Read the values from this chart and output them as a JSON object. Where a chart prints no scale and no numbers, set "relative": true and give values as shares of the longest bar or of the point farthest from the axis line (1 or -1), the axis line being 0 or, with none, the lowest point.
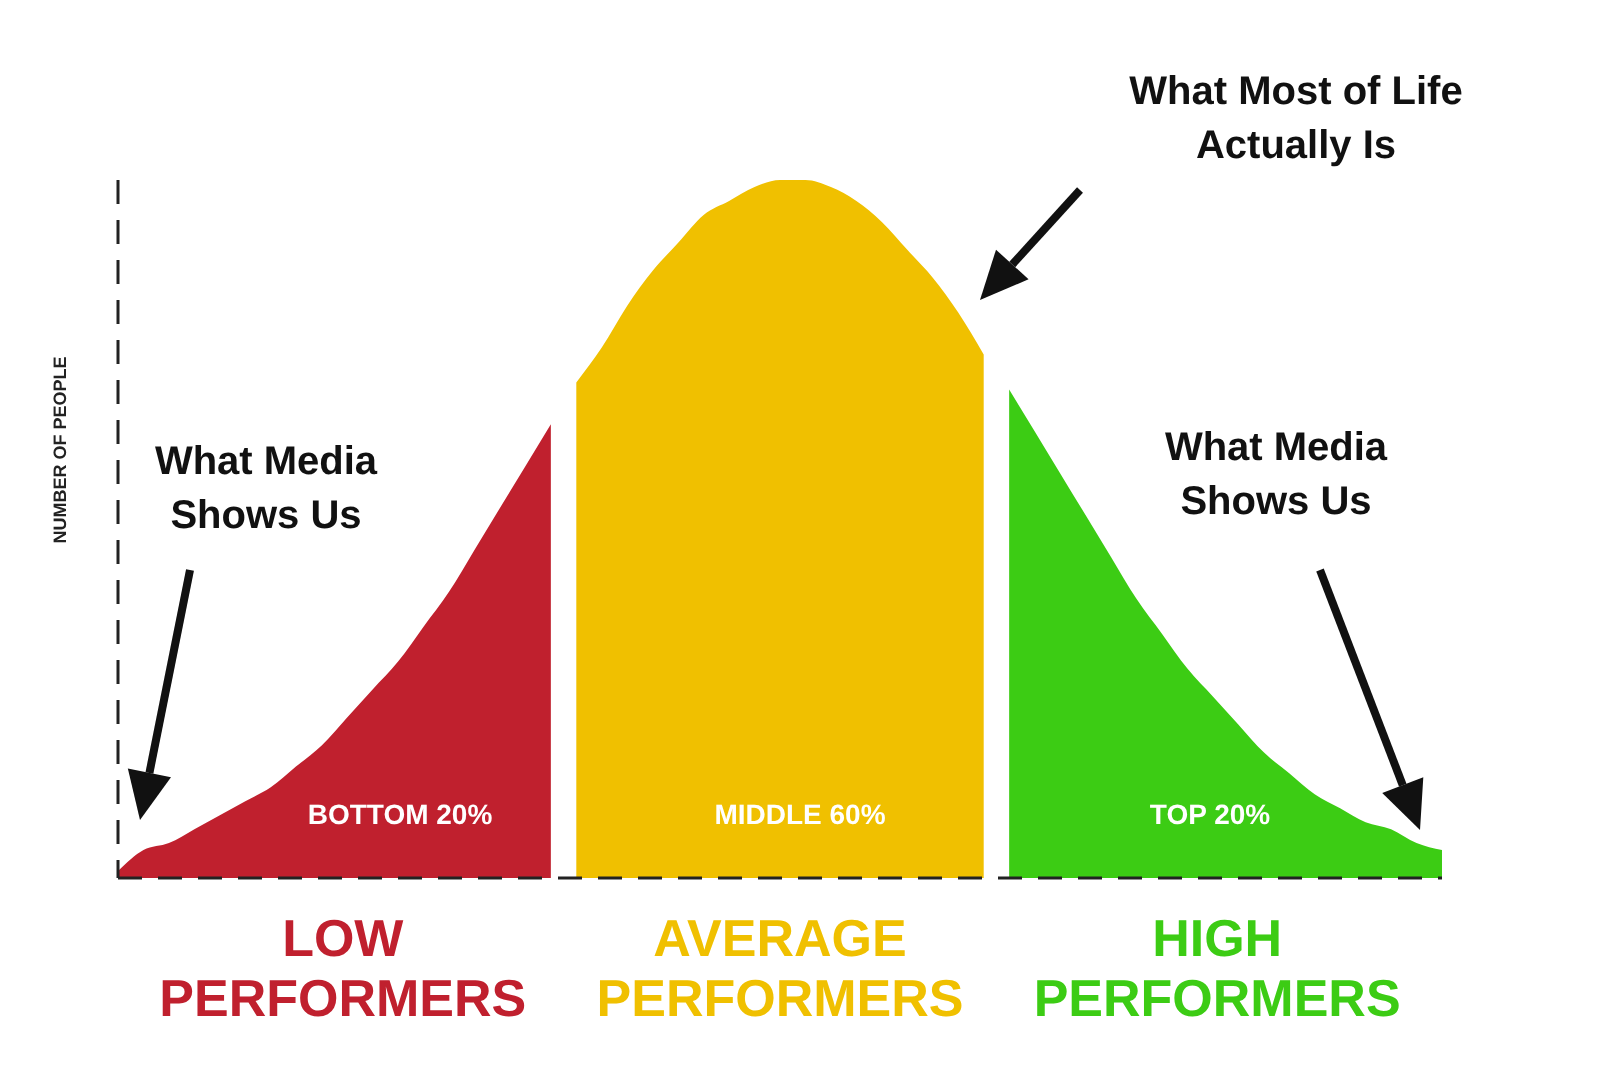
{
  "chart_data": {
    "type": "area",
    "relative": true,
    "ylabel": "NUMBER OF PEOPLE",
    "annotations": [
      "What Media Shows Us",
      "What Most of Life Actually Is",
      "What Media Shows Us",
      "BOTTOM 20%",
      "MIDDLE 60%",
      "TOP 20%"
    ],
    "categories": [
      null,
      null,
      null,
      null,
      null,
      null,
      null,
      null,
      null,
      null,
      null,
      null,
      null,
      null,
      null,
      null,
      null,
      null,
      null,
      null,
      null,
      null,
      null,
      null,
      null,
      null,
      null,
      null,
      null,
      null,
      null,
      null,
      null,
      null,
      null,
      null,
      null,
      null,
      null,
      null,
      null,
      null,
      null,
      null,
      null,
      null,
      null,
      null,
      null,
      null,
      null,
      null,
      null
    ],
    "series": [
      {
        "name": "LOW PERFORMERS",
        "color": "#c0202e",
        "values": [
          0.01,
          0.04,
          0.05,
          0.07,
          0.09,
          0.11,
          0.13,
          0.16,
          0.19,
          0.23,
          0.27,
          0.31,
          0.36,
          0.41,
          0.47,
          0.53,
          0.59,
          0.65,
          null,
          null,
          null,
          null,
          null,
          null,
          null,
          null,
          null,
          null,
          null,
          null,
          null,
          null,
          null,
          null,
          null,
          null,
          null,
          null,
          null,
          null,
          null,
          null,
          null,
          null,
          null,
          null,
          null,
          null,
          null,
          null,
          null,
          null,
          null
        ]
      },
      {
        "name": "AVERAGE PERFORMERS",
        "color": "#f0c000",
        "values": [
          null,
          null,
          null,
          null,
          null,
          null,
          null,
          null,
          null,
          null,
          null,
          null,
          null,
          null,
          null,
          null,
          null,
          null,
          0.71,
          0.76,
          0.82,
          0.87,
          0.91,
          0.95,
          0.97,
          0.99,
          1,
          1,
          0.99,
          0.97,
          0.94,
          0.9,
          0.86,
          0.81,
          0.75,
          null,
          null,
          null,
          null,
          null,
          null,
          null,
          null,
          null,
          null,
          null,
          null,
          null,
          null,
          null,
          null,
          null,
          null
        ]
      },
      {
        "name": "HIGH PERFORMERS",
        "color": "#3ccc14",
        "values": [
          null,
          null,
          null,
          null,
          null,
          null,
          null,
          null,
          null,
          null,
          null,
          null,
          null,
          null,
          null,
          null,
          null,
          null,
          null,
          null,
          null,
          null,
          null,
          null,
          null,
          null,
          null,
          null,
          null,
          null,
          null,
          null,
          null,
          null,
          null,
          0.7,
          0.64,
          0.58,
          0.52,
          0.46,
          0.4,
          0.35,
          0.3,
          0.26,
          0.22,
          0.18,
          0.15,
          0.12,
          0.1,
          0.08,
          0.07,
          0.05,
          0.04
        ]
      }
    ]
  }
}
